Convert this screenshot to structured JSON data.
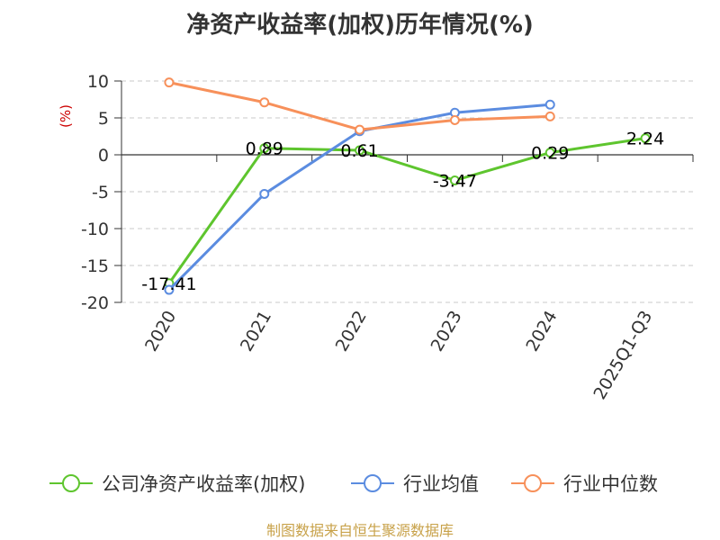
{
  "chart_data": {
    "type": "line",
    "title": "净资产收益率(加权)历年情况(%)",
    "ylabel": "(%)",
    "xlabel": "",
    "categories": [
      "2020",
      "2021",
      "2022",
      "2023",
      "2024",
      "2025Q1-Q3"
    ],
    "ylim": [
      -20,
      10
    ],
    "yticks": [
      10,
      5,
      0,
      -5,
      -10,
      -15,
      -20
    ],
    "grid": true,
    "legend_position": "bottom",
    "series": [
      {
        "name": "公司净资产收益率(加权)",
        "color": "#5ec52e",
        "values": [
          -17.41,
          0.89,
          0.61,
          -3.47,
          0.29,
          2.24
        ],
        "labels": [
          "-17.41",
          "0.89",
          "0.61",
          "-3.47",
          "0.29",
          "2.24"
        ]
      },
      {
        "name": "行业均值",
        "color": "#5b8ce0",
        "values": [
          -18.3,
          -5.3,
          3.2,
          5.7,
          6.8,
          null
        ]
      },
      {
        "name": "行业中位数",
        "color": "#f7905a",
        "values": [
          9.8,
          7.1,
          3.4,
          4.7,
          5.2,
          null
        ]
      }
    ],
    "source": "制图数据来自恒生聚源数据库"
  }
}
